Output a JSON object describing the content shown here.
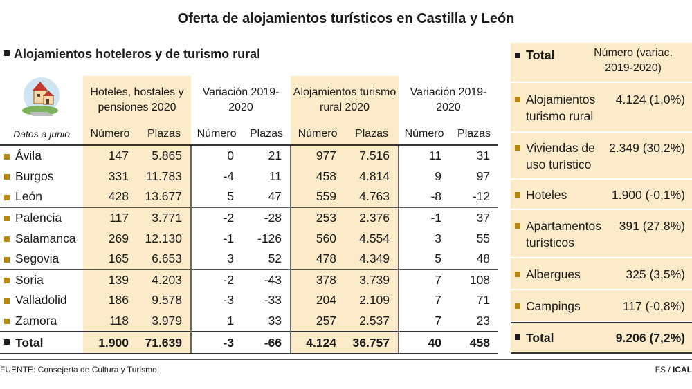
{
  "title": "Oferta de alojamientos turísticos en Castilla y León",
  "left_heading": "Alojamientos hoteleros y de turismo rural",
  "table": {
    "date_note": "Datos a junio",
    "groups": [
      "Hoteles, hostales y pensiones 2020",
      "Variación 2019-2020",
      "Alojamientos turismo rural 2020",
      "Variación 2019-2020"
    ],
    "subheaders": [
      "Número",
      "Plazas",
      "Número",
      "Plazas",
      "Número",
      "Plazas",
      "Número",
      "Plazas"
    ],
    "rows": [
      {
        "name": "Ávila",
        "values": [
          "147",
          "5.865",
          "0",
          "21",
          "977",
          "7.516",
          "11",
          "31"
        ]
      },
      {
        "name": "Burgos",
        "values": [
          "331",
          "11.783",
          "-4",
          "11",
          "458",
          "4.814",
          "9",
          "97"
        ]
      },
      {
        "name": "León",
        "values": [
          "428",
          "13.677",
          "5",
          "47",
          "559",
          "4.763",
          "-8",
          "-12"
        ]
      },
      {
        "name": "Palencia",
        "values": [
          "117",
          "3.771",
          "-2",
          "-28",
          "253",
          "2.376",
          "-1",
          "37"
        ]
      },
      {
        "name": "Salamanca",
        "values": [
          "269",
          "12.130",
          "-1",
          "-126",
          "560",
          "4.554",
          "3",
          "55"
        ]
      },
      {
        "name": "Segovia",
        "values": [
          "165",
          "6.653",
          "3",
          "52",
          "478",
          "4.349",
          "5",
          "48"
        ]
      },
      {
        "name": "Soria",
        "values": [
          "139",
          "4.203",
          "-2",
          "-43",
          "378",
          "3.739",
          "7",
          "108"
        ]
      },
      {
        "name": "Valladolid",
        "values": [
          "186",
          "9.578",
          "-3",
          "-33",
          "204",
          "2.109",
          "7",
          "71"
        ]
      },
      {
        "name": "Zamora",
        "values": [
          "118",
          "3.979",
          "1",
          "33",
          "257",
          "2.537",
          "7",
          "23"
        ]
      }
    ],
    "total": {
      "name": "Total",
      "values": [
        "1.900",
        "71.639",
        "-3",
        "-66",
        "4.124",
        "36.757",
        "40",
        "458"
      ]
    }
  },
  "summary": {
    "title": "Total",
    "header": "Número (variac. 2019-2020)",
    "items": [
      {
        "label": "Alojamientos turismo rural",
        "value": "4.124 (1,0%)"
      },
      {
        "label": "Viviendas de uso turístico",
        "value": "2.349 (30,2%)"
      },
      {
        "label": "Hoteles",
        "value": "1.900 (-0,1%)"
      },
      {
        "label": "Apartamentos turísticos",
        "value": "391 (27,8%)"
      },
      {
        "label": "Albergues",
        "value": "325 (3,5%)"
      },
      {
        "label": "Campings",
        "value": "117 (-0,8%)"
      }
    ],
    "total_label": "Total",
    "total_value": "9.206 (7,2%)"
  },
  "source": "FUENTE: Consejería de Cultura y Turismo",
  "credit_a": "FS / ",
  "credit_b": "ICAL",
  "colors": {
    "highlight": "#fcebc8",
    "bullet": "#b8860b",
    "text": "#1a1a1a"
  },
  "chart_data": {
    "type": "table",
    "title": "Oferta de alojamientos turísticos en Castilla y León",
    "columns": [
      "Hoteles, hostales y pensiones 2020 Número",
      "Hoteles, hostales y pensiones 2020 Plazas",
      "Variación 2019-2020 Número",
      "Variación 2019-2020 Plazas",
      "Alojamientos turismo rural 2020 Número",
      "Alojamientos turismo rural 2020 Plazas",
      "Variación 2019-2020 Número",
      "Variación 2019-2020 Plazas"
    ],
    "categories": [
      "Ávila",
      "Burgos",
      "León",
      "Palencia",
      "Salamanca",
      "Segovia",
      "Soria",
      "Valladolid",
      "Zamora",
      "Total"
    ],
    "rows": [
      [
        147,
        5865,
        0,
        21,
        977,
        7516,
        11,
        31
      ],
      [
        331,
        11783,
        -4,
        11,
        458,
        4814,
        9,
        97
      ],
      [
        428,
        13677,
        5,
        47,
        559,
        4763,
        -8,
        -12
      ],
      [
        117,
        3771,
        -2,
        -28,
        253,
        2376,
        -1,
        37
      ],
      [
        269,
        12130,
        -1,
        -126,
        560,
        4554,
        3,
        55
      ],
      [
        165,
        6653,
        3,
        52,
        478,
        4349,
        5,
        48
      ],
      [
        139,
        4203,
        -2,
        -43,
        378,
        3739,
        7,
        108
      ],
      [
        186,
        9578,
        -3,
        -33,
        204,
        2109,
        7,
        71
      ],
      [
        118,
        3979,
        1,
        33,
        257,
        2537,
        7,
        23
      ],
      [
        1900,
        71639,
        -3,
        -66,
        4124,
        36757,
        40,
        458
      ]
    ],
    "summary": {
      "categories": [
        "Alojamientos turismo rural",
        "Viviendas de uso turístico",
        "Hoteles",
        "Apartamentos turísticos",
        "Albergues",
        "Campings",
        "Total"
      ],
      "numbers": [
        4124,
        2349,
        1900,
        391,
        325,
        117,
        9206
      ],
      "variation_pct": [
        1.0,
        30.2,
        -0.1,
        27.8,
        3.5,
        -0.8,
        7.2
      ]
    }
  }
}
